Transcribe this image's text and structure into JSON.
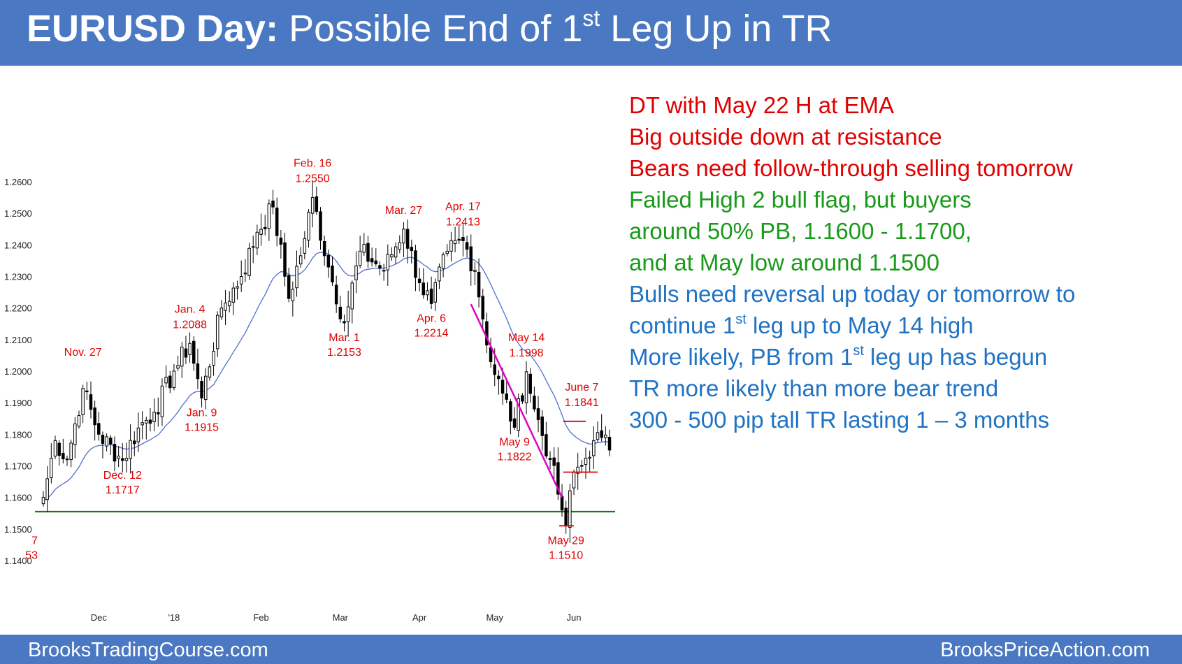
{
  "header": {
    "title_bold": "EURUSD Day:",
    "title_pre": "Possible End of 1",
    "title_sup": "st",
    "title_post": "Leg Up in TR"
  },
  "footer": {
    "left": "BrooksTradingCourse.com",
    "right": "BrooksPriceAction.com"
  },
  "colors": {
    "banner": "#4a78c2",
    "red": "#e00000",
    "green": "#1a9a1a",
    "blue": "#1f72c4",
    "ema": "#4f6fd0",
    "magenta": "#e000c8",
    "support_line": "#1a7a1a"
  },
  "notes": [
    {
      "pre": "DT with May 22 H at EMA",
      "sup": "",
      "post": "",
      "color": "#e00000"
    },
    {
      "pre": "Big outside down at resistance",
      "sup": "",
      "post": "",
      "color": "#e00000"
    },
    {
      "pre": "Bears need follow-through selling tomorrow",
      "sup": "",
      "post": "",
      "color": "#e00000"
    },
    {
      "pre": "Failed High 2 bull flag, but buyers",
      "sup": "",
      "post": "",
      "color": "#1a9a1a"
    },
    {
      "pre": "around 50% PB, 1.1600 - 1.1700,",
      "sup": "",
      "post": "",
      "color": "#1a9a1a"
    },
    {
      "pre": "and at May low around 1.1500",
      "sup": "",
      "post": "",
      "color": "#1a9a1a"
    },
    {
      "pre": "Bulls need reversal up today or tomorrow to",
      "sup": "",
      "post": "",
      "color": "#1f72c4"
    },
    {
      "pre": "continue 1",
      "sup": "st",
      "post": " leg up to May 14 high",
      "color": "#1f72c4"
    },
    {
      "pre": "More likely, PB from 1",
      "sup": "st",
      "post": " leg up has begun",
      "color": "#1f72c4"
    },
    {
      "pre": "TR more likely than more bear trend",
      "sup": "",
      "post": "",
      "color": "#1f72c4"
    },
    {
      "pre": "300 - 500 pip tall TR lasting 1 – 3 months",
      "sup": "",
      "post": "",
      "color": "#1f72c4"
    }
  ],
  "chart_data": {
    "type": "candlestick",
    "symbol": "EURUSD",
    "timeframe": "Day",
    "ylim": [
      1.14,
      1.26
    ],
    "y_ticks": [
      "1.2600",
      "1.2500",
      "1.2400",
      "1.2300",
      "1.2200",
      "1.2100",
      "1.2000",
      "1.1900",
      "1.1800",
      "1.1700",
      "1.1600",
      "1.1500",
      "1.1400"
    ],
    "x_ticks": [
      {
        "label": "Dec",
        "bar": 14
      },
      {
        "label": "'18",
        "bar": 33
      },
      {
        "label": "Feb",
        "bar": 55
      },
      {
        "label": "Mar",
        "bar": 75
      },
      {
        "label": "Apr",
        "bar": 95
      },
      {
        "label": "May",
        "bar": 114
      },
      {
        "label": "Jun",
        "bar": 134
      }
    ],
    "num_bars": 144,
    "key_points": [
      {
        "bar": 0,
        "price": 1.16
      },
      {
        "bar": 3,
        "price": 1.178
      },
      {
        "bar": 6,
        "price": 1.172
      },
      {
        "bar": 10,
        "price": 1.1945
      },
      {
        "bar": 14,
        "price": 1.18
      },
      {
        "bar": 20,
        "price": 1.1717
      },
      {
        "bar": 24,
        "price": 1.182
      },
      {
        "bar": 28,
        "price": 1.187
      },
      {
        "bar": 33,
        "price": 1.2
      },
      {
        "bar": 37,
        "price": 1.2088
      },
      {
        "bar": 40,
        "price": 1.1915
      },
      {
        "bar": 45,
        "price": 1.22
      },
      {
        "bar": 50,
        "price": 1.23
      },
      {
        "bar": 54,
        "price": 1.244
      },
      {
        "bar": 58,
        "price": 1.252
      },
      {
        "bar": 62,
        "price": 1.223
      },
      {
        "bar": 66,
        "price": 1.242
      },
      {
        "bar": 68,
        "price": 1.255
      },
      {
        "bar": 72,
        "price": 1.233
      },
      {
        "bar": 76,
        "price": 1.2153
      },
      {
        "bar": 80,
        "price": 1.238
      },
      {
        "bar": 86,
        "price": 1.232
      },
      {
        "bar": 91,
        "price": 1.245
      },
      {
        "bar": 95,
        "price": 1.228
      },
      {
        "bar": 98,
        "price": 1.2214
      },
      {
        "bar": 102,
        "price": 1.238
      },
      {
        "bar": 106,
        "price": 1.2413
      },
      {
        "bar": 109,
        "price": 1.232
      },
      {
        "bar": 113,
        "price": 1.203
      },
      {
        "bar": 116,
        "price": 1.193
      },
      {
        "bar": 119,
        "price": 1.1822
      },
      {
        "bar": 122,
        "price": 1.1998
      },
      {
        "bar": 124,
        "price": 1.188
      },
      {
        "bar": 128,
        "price": 1.172
      },
      {
        "bar": 131,
        "price": 1.156
      },
      {
        "bar": 132,
        "price": 1.151
      },
      {
        "bar": 134,
        "price": 1.168
      },
      {
        "bar": 136,
        "price": 1.17
      },
      {
        "bar": 139,
        "price": 1.178
      },
      {
        "bar": 141,
        "price": 1.179
      },
      {
        "bar": 143,
        "price": 1.175
      }
    ],
    "annotations": [
      {
        "label": "Nov. 27",
        "value": "",
        "bar": 10,
        "price": 1.2,
        "pos": "above"
      },
      {
        "label": "Dec. 12",
        "value": "1.1717",
        "bar": 20,
        "price": 1.1717,
        "pos": "below"
      },
      {
        "label": "Jan. 4",
        "value": "1.2088",
        "bar": 37,
        "price": 1.2088,
        "pos": "above"
      },
      {
        "label": "Jan. 9",
        "value": "1.1915",
        "bar": 40,
        "price": 1.1915,
        "pos": "below"
      },
      {
        "label": "Feb. 16",
        "value": "1.2550",
        "bar": 68,
        "price": 1.255,
        "pos": "above"
      },
      {
        "label": "Mar. 1",
        "value": "1.2153",
        "bar": 76,
        "price": 1.2153,
        "pos": "below"
      },
      {
        "label": "Mar. 27",
        "value": "",
        "bar": 91,
        "price": 1.245,
        "pos": "above"
      },
      {
        "label": "Apr. 17",
        "value": "1.2413",
        "bar": 106,
        "price": 1.2413,
        "pos": "above"
      },
      {
        "label": "Apr. 6",
        "value": "1.2214",
        "bar": 98,
        "price": 1.2214,
        "pos": "below"
      },
      {
        "label": "May 14",
        "value": "1.1998",
        "bar": 122,
        "price": 1.1998,
        "pos": "above"
      },
      {
        "label": "May 9",
        "value": "1.1822",
        "bar": 119,
        "price": 1.1822,
        "pos": "below"
      },
      {
        "label": "June 7",
        "value": "1.1841",
        "bar": 136,
        "price": 1.1841,
        "pos": "above"
      },
      {
        "label": "May 29",
        "value": "1.1510",
        "bar": 132,
        "price": 1.151,
        "pos": "below"
      },
      {
        "label": "7",
        "value": "53",
        "bar": 0,
        "price": 1.151,
        "pos": "below"
      }
    ],
    "support_line": {
      "price": 1.1555,
      "color": "#1a7a1a"
    },
    "bear_trendline": {
      "from_bar": 108,
      "from_price": 1.223,
      "to_bar": 131,
      "to_price": 1.16,
      "color": "#e00000"
    },
    "resistance_marks": [
      {
        "from_bar": 132,
        "to_bar": 137,
        "price": 1.1841
      },
      {
        "from_bar": 132,
        "to_bar": 140,
        "price": 1.168
      },
      {
        "from_bar": 131,
        "to_bar": 134,
        "price": 1.151
      }
    ],
    "ema": {
      "period": 20,
      "color": "#4f6fd0"
    }
  }
}
